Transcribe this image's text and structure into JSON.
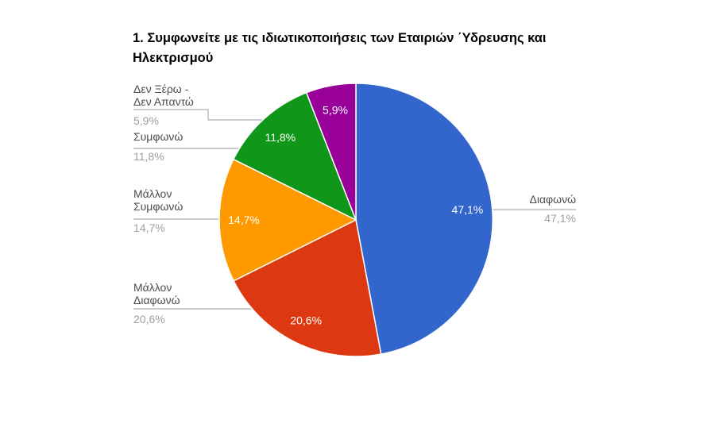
{
  "chart_data": {
    "type": "pie",
    "title": "1. Συμφωνείτε με τις ιδιωτικοποιήσεις των Εταιριών ΄Υδρευσης και Ηλεκτρισμού",
    "title_lines": [
      "1. Συμφωνείτε με τις ιδιωτικοποιήσεις των Εταιριών ΄Υδρευσης και",
      "Ηλεκτρισμού"
    ],
    "legend_position": "labeled-callouts",
    "background_color": "#ffffff",
    "leader_line_color": "#999999",
    "label_color": "#4c4c4c",
    "percent_color": "#9e9e9e",
    "slices": [
      {
        "label": "Διαφωνώ",
        "value": 47.1,
        "value_label": "47,1%",
        "color": "#3366CC",
        "callout_side": "right"
      },
      {
        "label": "Μάλλον Διαφωνώ",
        "value": 20.6,
        "value_label": "20,6%",
        "color": "#DC3912",
        "callout_side": "left"
      },
      {
        "label": "Μάλλον Συμφωνώ",
        "value": 14.7,
        "value_label": "14,7%",
        "color": "#FF9900",
        "callout_side": "left"
      },
      {
        "label": "Συμφωνώ",
        "value": 11.8,
        "value_label": "11,8%",
        "color": "#109618",
        "callout_side": "left"
      },
      {
        "label": "Δεν Ξέρω - Δεν Απαντώ",
        "value": 5.9,
        "value_label": "5,9%",
        "color": "#990099",
        "callout_side": "left"
      }
    ]
  }
}
